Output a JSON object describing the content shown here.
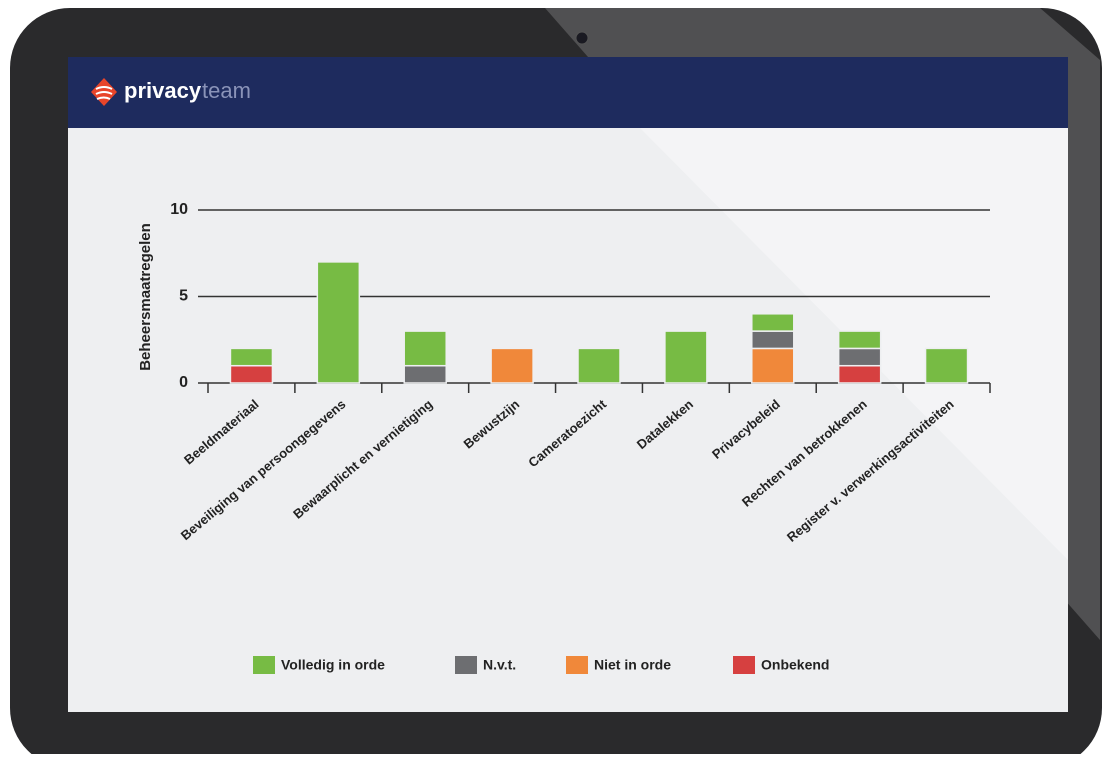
{
  "header": {
    "brand_bold": "privacy",
    "brand_light": "team"
  },
  "chart_data": {
    "type": "stacked-bar",
    "y_label": "Beheersmaatregelen",
    "categories": [
      "Beeldmateriaal",
      "Beveiliging van persoongegevens",
      "Bewaarplicht en vernietiging",
      "Bewustzijn",
      "Cameratoezicht",
      "Datalekken",
      "Privacybeleid",
      "Rechten van betrokkenen",
      "Register v. verwerkingsactiviteiten"
    ],
    "series": [
      {
        "name": "Volledig in orde",
        "color": "#77bb44",
        "values": [
          1,
          7,
          2,
          0,
          2,
          3,
          1,
          1,
          2
        ]
      },
      {
        "name": "N.v.t.",
        "color": "#6d6e71",
        "values": [
          0,
          0,
          1,
          0,
          0,
          0,
          1,
          1,
          0
        ]
      },
      {
        "name": "Niet in orde",
        "color": "#f0883a",
        "values": [
          0,
          0,
          0,
          2,
          0,
          0,
          2,
          0,
          0
        ]
      },
      {
        "name": "Onbekend",
        "color": "#d64040",
        "values": [
          1,
          0,
          0,
          0,
          0,
          0,
          0,
          1,
          0
        ]
      }
    ],
    "ylim": [
      0,
      10
    ],
    "yticks": [
      0,
      5,
      10
    ],
    "grid": true,
    "legend": "bottom"
  }
}
